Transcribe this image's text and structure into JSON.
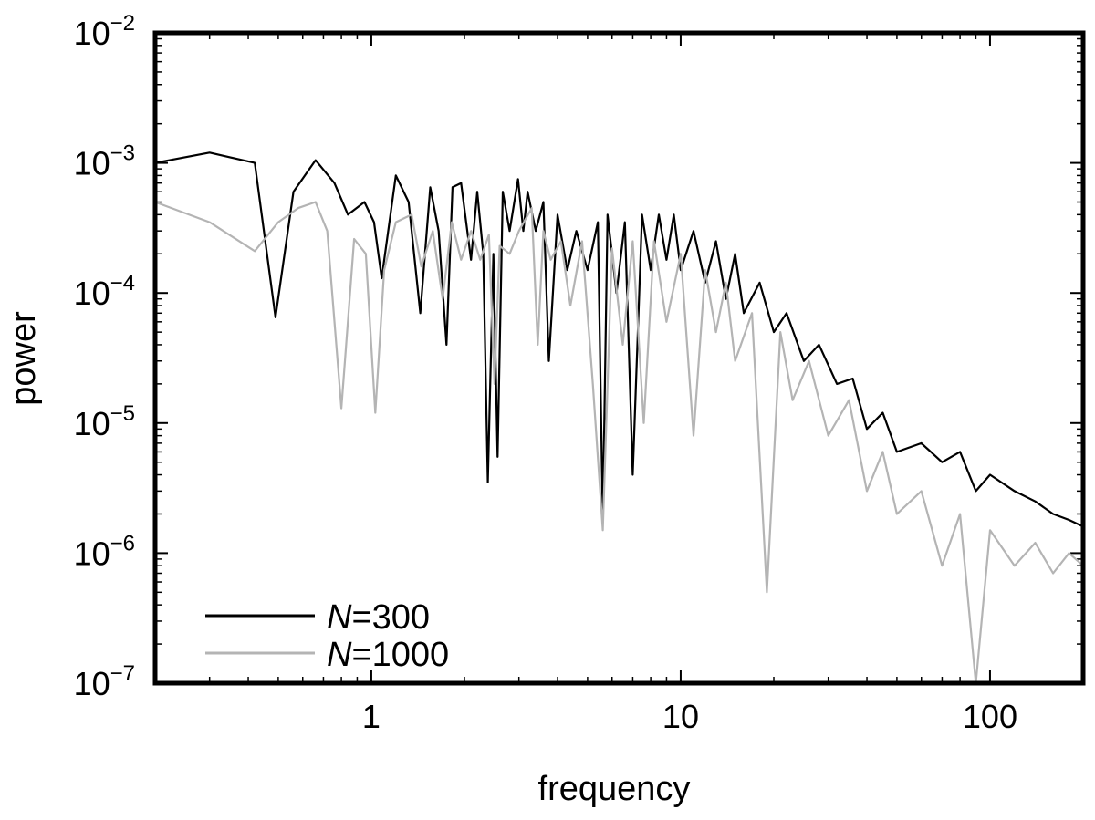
{
  "chart_data": {
    "type": "line",
    "title": "",
    "xlabel": "frequency",
    "ylabel": "power",
    "xscale": "log",
    "yscale": "log",
    "xlim": [
      0.2,
      200
    ],
    "ylim": [
      1e-07,
      0.01
    ],
    "xticks": [
      {
        "value": 1,
        "label": "1"
      },
      {
        "value": 10,
        "label": "10"
      },
      {
        "value": 100,
        "label": "100"
      }
    ],
    "yticks": [
      {
        "value": 0.01,
        "base": "10",
        "exp": "−2"
      },
      {
        "value": 0.001,
        "base": "10",
        "exp": "−3"
      },
      {
        "value": 0.0001,
        "base": "10",
        "exp": "−4"
      },
      {
        "value": 1e-05,
        "base": "10",
        "exp": "−5"
      },
      {
        "value": 1e-06,
        "base": "10",
        "exp": "−6"
      },
      {
        "value": 1e-07,
        "base": "10",
        "exp": "−7"
      }
    ],
    "legend_position": "bottom-left",
    "series": [
      {
        "name": "N=300",
        "legend_var": "N",
        "legend_value": "=300",
        "color": "#000000",
        "x": [
          0.2,
          0.3,
          0.42,
          0.49,
          0.56,
          0.66,
          0.76,
          0.84,
          0.95,
          1.02,
          1.08,
          1.2,
          1.32,
          1.44,
          1.55,
          1.65,
          1.75,
          1.83,
          1.95,
          2.1,
          2.2,
          2.3,
          2.38,
          2.48,
          2.56,
          2.66,
          2.8,
          2.98,
          3.1,
          3.2,
          3.4,
          3.6,
          3.75,
          4.0,
          4.3,
          4.6,
          5.0,
          5.4,
          5.6,
          5.8,
          6.2,
          6.6,
          7.0,
          7.5,
          8.0,
          8.5,
          9.0,
          9.5,
          10.0,
          11.0,
          12.0,
          13.0,
          14.0,
          15.0,
          16.0,
          18.0,
          20.0,
          22.0,
          25.0,
          28.0,
          32.0,
          36.0,
          40.0,
          45.0,
          50.0,
          60.0,
          70.0,
          80.0,
          90.0,
          100.0,
          120.0,
          140.0,
          160.0,
          180.0,
          200.0
        ],
        "y": [
          0.001,
          0.0012,
          0.001,
          6.5e-05,
          0.0006,
          0.00105,
          0.0007,
          0.0004,
          0.0005,
          0.00035,
          0.00013,
          0.0008,
          0.0005,
          7e-05,
          0.00065,
          0.0003,
          4e-05,
          0.00065,
          0.0007,
          0.00018,
          0.0006,
          0.0002,
          3.5e-06,
          0.0002,
          5.5e-06,
          0.0006,
          0.0003,
          0.00075,
          0.0003,
          0.0006,
          0.0003,
          0.0005,
          3e-05,
          0.0004,
          0.00015,
          0.0003,
          0.00015,
          0.00035,
          1.8e-06,
          0.0004,
          0.0001,
          0.00035,
          4e-06,
          0.0004,
          0.00015,
          0.0004,
          0.00018,
          0.0004,
          0.00015,
          0.0003,
          0.00012,
          0.00025,
          9e-05,
          0.0002,
          7e-05,
          0.00012,
          5e-05,
          7e-05,
          3e-05,
          4e-05,
          2e-05,
          2.2e-05,
          9e-06,
          1.2e-05,
          6e-06,
          7e-06,
          5e-06,
          6e-06,
          3e-06,
          4e-06,
          3e-06,
          2.5e-06,
          2e-06,
          1.8e-06,
          1.6e-06
        ]
      },
      {
        "name": "N=1000",
        "legend_var": "N",
        "legend_value": "=1000",
        "color": "#b4b4b4",
        "x": [
          0.2,
          0.3,
          0.42,
          0.5,
          0.58,
          0.66,
          0.72,
          0.8,
          0.88,
          0.96,
          1.03,
          1.1,
          1.2,
          1.35,
          1.45,
          1.58,
          1.7,
          1.82,
          1.95,
          2.1,
          2.25,
          2.4,
          2.5,
          2.6,
          2.8,
          3.0,
          3.3,
          3.45,
          3.6,
          3.8,
          4.1,
          4.4,
          4.8,
          5.2,
          5.6,
          6.0,
          6.5,
          7.0,
          7.6,
          8.2,
          9.0,
          10.0,
          11.0,
          12.0,
          13.0,
          14.0,
          15.0,
          17.0,
          19.0,
          21.0,
          23.0,
          26.0,
          30.0,
          35.0,
          40.0,
          45.0,
          50.0,
          60.0,
          70.0,
          80.0,
          90.0,
          100.0,
          120.0,
          140.0,
          160.0,
          180.0,
          200.0
        ],
        "y": [
          0.0005,
          0.00035,
          0.00021,
          0.00035,
          0.00045,
          0.0005,
          0.0003,
          1.3e-05,
          0.00026,
          0.0002,
          1.2e-05,
          0.00015,
          0.00035,
          0.0004,
          0.00016,
          0.0003,
          9e-05,
          0.00035,
          0.00018,
          0.0003,
          0.00018,
          0.00028,
          2e-05,
          0.00023,
          0.0002,
          0.0003,
          0.00045,
          4e-05,
          0.0003,
          0.00018,
          0.00025,
          8e-05,
          0.00025,
          2e-05,
          1.5e-06,
          0.00022,
          4e-05,
          0.00025,
          1e-05,
          0.00025,
          6e-05,
          0.0002,
          8e-06,
          0.00015,
          5e-05,
          0.00012,
          3e-05,
          7e-05,
          5e-07,
          5e-05,
          1.5e-05,
          3e-05,
          8e-06,
          1.5e-05,
          3e-06,
          6e-06,
          2e-06,
          3e-06,
          8e-07,
          2e-06,
          1e-07,
          1.5e-06,
          8e-07,
          1.2e-06,
          7e-07,
          1e-06,
          8e-07
        ]
      }
    ]
  }
}
